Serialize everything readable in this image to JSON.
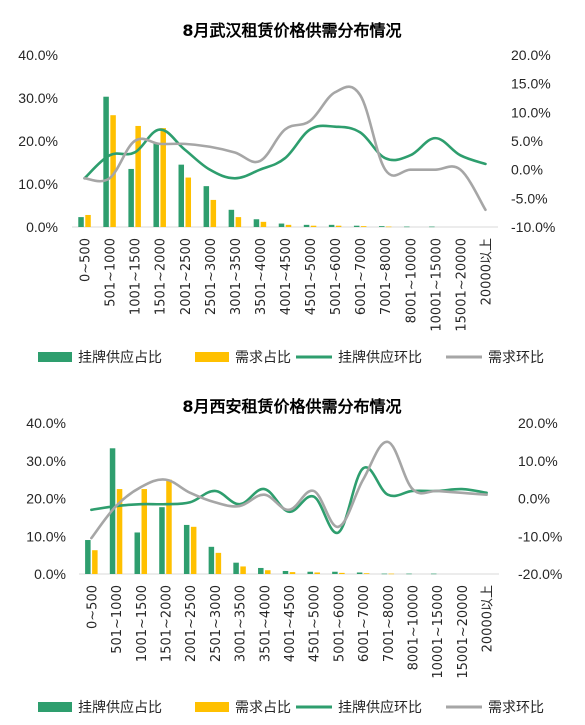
{
  "colors": {
    "supply_bar": "#2e9e6e",
    "demand_bar": "#ffc000",
    "supply_line": "#2e9e6e",
    "demand_line": "#a6a6a6",
    "axis": "#d9d9d9",
    "text": "#262626"
  },
  "legend": [
    "挂牌供应占比",
    "需求占比",
    "挂牌供应环比",
    "需求环比"
  ],
  "chart_data": [
    {
      "type": "bar",
      "title": "8月武汉租赁价格供需分布情况",
      "categories": [
        "0~500",
        "501~1000",
        "1001~1500",
        "1501~2000",
        "2001~2500",
        "2501~3000",
        "3001~3500",
        "3501~4000",
        "4001~4500",
        "4501~5000",
        "5001~6000",
        "6001~7000",
        "7001~8000",
        "8001~10000",
        "10001~15000",
        "15001~20000",
        "20000以上"
      ],
      "y_left": {
        "ticks": [
          "0.0%",
          "10.0%",
          "20.0%",
          "30.0%",
          "40.0%"
        ],
        "min": 0,
        "max": 40
      },
      "y_right": {
        "ticks": [
          "-10.0%",
          "-5.0%",
          "0.0%",
          "5.0%",
          "10.0%",
          "15.0%",
          "20.0%"
        ],
        "min": -10,
        "max": 20
      },
      "legend_position": "bottom",
      "series": [
        {
          "name": "挂牌供应占比",
          "kind": "bar",
          "axis": "left",
          "values": [
            2.3,
            30.3,
            13.5,
            19.5,
            14.5,
            9.5,
            4.0,
            1.8,
            0.8,
            0.5,
            0.5,
            0.3,
            0.2,
            0.1,
            0.1,
            0.0,
            0.0
          ]
        },
        {
          "name": "需求占比",
          "kind": "bar",
          "axis": "left",
          "values": [
            2.8,
            26.0,
            23.5,
            23.0,
            11.5,
            6.3,
            2.3,
            1.2,
            0.5,
            0.3,
            0.3,
            0.2,
            0.1,
            0.0,
            0.0,
            0.0,
            0.0
          ]
        },
        {
          "name": "挂牌供应环比",
          "kind": "line",
          "axis": "right",
          "values": [
            -1.5,
            2.5,
            3.0,
            7.0,
            3.5,
            0.0,
            -1.5,
            0.0,
            2.0,
            7.0,
            7.5,
            6.5,
            2.0,
            2.5,
            5.5,
            2.5,
            1.0
          ]
        },
        {
          "name": "需求环比",
          "kind": "line",
          "axis": "right",
          "values": [
            -1.5,
            -1.5,
            5.0,
            4.5,
            4.5,
            4.0,
            3.0,
            1.5,
            7.0,
            8.5,
            13.5,
            13.0,
            0.0,
            0.0,
            0.0,
            0.0,
            -7.0
          ]
        }
      ]
    },
    {
      "type": "bar",
      "title": "8月西安租赁价格供需分布情况",
      "categories": [
        "0~500",
        "501~1000",
        "1001~1500",
        "1501~2000",
        "2001~2500",
        "2501~3000",
        "3001~3500",
        "3501~4000",
        "4001~4500",
        "4501~5000",
        "5001~6000",
        "6001~7000",
        "7001~8000",
        "8001~10000",
        "10001~15000",
        "15001~20000",
        "20000以上"
      ],
      "y_left": {
        "ticks": [
          "0.0%",
          "10.0%",
          "20.0%",
          "30.0%",
          "40.0%"
        ],
        "min": 0,
        "max": 40
      },
      "y_right": {
        "ticks": [
          "-20.0%",
          "-10.0%",
          "0.0%",
          "10.0%",
          "20.0%"
        ],
        "min": -20,
        "max": 20
      },
      "legend_position": "bottom",
      "series": [
        {
          "name": "挂牌供应占比",
          "kind": "bar",
          "axis": "left",
          "values": [
            9.0,
            33.3,
            11.0,
            17.7,
            13.0,
            7.2,
            3.0,
            1.6,
            0.8,
            0.6,
            0.6,
            0.4,
            0.1,
            0.1,
            0.1,
            0.0,
            0.0
          ]
        },
        {
          "name": "需求占比",
          "kind": "bar",
          "axis": "left",
          "values": [
            6.3,
            22.5,
            22.5,
            25.0,
            12.5,
            5.6,
            2.0,
            1.0,
            0.5,
            0.4,
            0.3,
            0.2,
            0.1,
            0.0,
            0.0,
            0.0,
            0.0
          ]
        },
        {
          "name": "挂牌供应环比",
          "kind": "line",
          "axis": "right",
          "values": [
            -3.0,
            -2.0,
            -1.5,
            -1.5,
            -1.0,
            2.0,
            -1.5,
            2.5,
            -3.5,
            0.5,
            -9.0,
            8.0,
            1.0,
            2.0,
            2.0,
            2.5,
            1.5
          ]
        },
        {
          "name": "需求环比",
          "kind": "line",
          "axis": "right",
          "values": [
            -10.5,
            -2.0,
            3.0,
            5.0,
            1.5,
            -1.0,
            -2.0,
            1.0,
            -3.0,
            2.0,
            -7.5,
            5.0,
            15.0,
            2.5,
            2.0,
            1.5,
            1.0
          ]
        }
      ]
    }
  ]
}
